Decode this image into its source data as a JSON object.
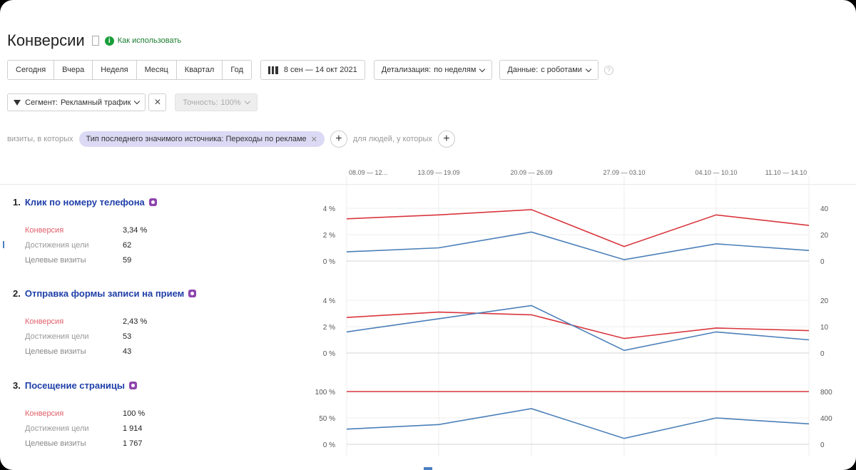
{
  "header": {
    "title": "Конверсии",
    "how_to_use": "Как использовать"
  },
  "toolbar": {
    "periods": [
      "Сегодня",
      "Вчера",
      "Неделя",
      "Месяц",
      "Квартал",
      "Год"
    ],
    "date_range": "8 сен — 14 окт 2021",
    "detail_label": "Детализация:",
    "detail_value": "по неделям",
    "data_label": "Данные:",
    "data_value": "с роботами"
  },
  "segment": {
    "label": "Сегмент:",
    "value": "Рекламный трафик",
    "accuracy_label": "Точность:",
    "accuracy_value": "100%"
  },
  "filter": {
    "visits_label": "визиты, в которых",
    "chip": "Тип последнего значимого источника: Переходы по рекламе",
    "people_label": "для людей, у которых"
  },
  "periods_axis": [
    "08.09 — 12...",
    "13.09 — 19.09",
    "20.09 — 26.09",
    "27.09 — 03.10",
    "04.10 — 10.10",
    "11.10 — 14.10"
  ],
  "metric_labels": {
    "conversion": "Конверсия",
    "reaches": "Достижения цели",
    "visits": "Целевые визиты"
  },
  "goals": [
    {
      "num": "1.",
      "name": "Клик по номеру телефона",
      "conversion": "3,34 %",
      "reaches": "62",
      "visits": "59",
      "left_ticks": [
        "4 %",
        "2 %",
        "0 %"
      ],
      "right_ticks": [
        "40",
        "20",
        "0"
      ]
    },
    {
      "num": "2.",
      "name": "Отправка формы записи на прием",
      "conversion": "2,43 %",
      "reaches": "53",
      "visits": "43",
      "left_ticks": [
        "4 %",
        "2 %",
        "0 %"
      ],
      "right_ticks": [
        "20",
        "10",
        "0"
      ]
    },
    {
      "num": "3.",
      "name": "Посещение страницы",
      "conversion": "100 %",
      "reaches": "1 914",
      "visits": "1 767",
      "left_ticks": [
        "100 %",
        "50 %",
        "0 %"
      ],
      "right_ticks": [
        "800",
        "400",
        "0"
      ]
    }
  ],
  "chart_data": [
    {
      "type": "line",
      "x": [
        "08.09 — 12...",
        "13.09 — 19.09",
        "20.09 — 26.09",
        "27.09 — 03.10",
        "04.10 — 10.10",
        "11.10 — 14.10"
      ],
      "left_ylim": [
        0,
        4
      ],
      "right_ylim": [
        0,
        40
      ],
      "series": [
        {
          "axis": "left",
          "color": "#d9363e",
          "values": [
            3.2,
            3.5,
            3.9,
            1.1,
            3.5,
            2.7
          ]
        },
        {
          "axis": "right",
          "color": "#4a7fb8",
          "values": [
            7,
            10,
            22,
            1,
            13,
            8
          ]
        }
      ]
    },
    {
      "type": "line",
      "x": [
        "08.09 — 12...",
        "13.09 — 19.09",
        "20.09 — 26.09",
        "27.09 — 03.10",
        "04.10 — 10.10",
        "11.10 — 14.10"
      ],
      "left_ylim": [
        0,
        4
      ],
      "right_ylim": [
        0,
        20
      ],
      "series": [
        {
          "axis": "left",
          "color": "#d9363e",
          "values": [
            2.7,
            3.1,
            2.9,
            1.1,
            1.9,
            1.7
          ]
        },
        {
          "axis": "right",
          "color": "#4a7fb8",
          "values": [
            8,
            13,
            18,
            1,
            8,
            5
          ]
        }
      ]
    },
    {
      "type": "line",
      "x": [
        "08.09 — 12...",
        "13.09 — 19.09",
        "20.09 — 26.09",
        "27.09 — 03.10",
        "04.10 — 10.10",
        "11.10 — 14.10"
      ],
      "left_ylim": [
        0,
        100
      ],
      "right_ylim": [
        0,
        800
      ],
      "series": [
        {
          "axis": "left",
          "color": "#d9363e",
          "values": [
            100,
            100,
            100,
            100,
            100,
            100
          ]
        },
        {
          "axis": "right",
          "color": "#4a7fb8",
          "values": [
            230,
            300,
            540,
            90,
            400,
            310
          ]
        }
      ]
    }
  ]
}
